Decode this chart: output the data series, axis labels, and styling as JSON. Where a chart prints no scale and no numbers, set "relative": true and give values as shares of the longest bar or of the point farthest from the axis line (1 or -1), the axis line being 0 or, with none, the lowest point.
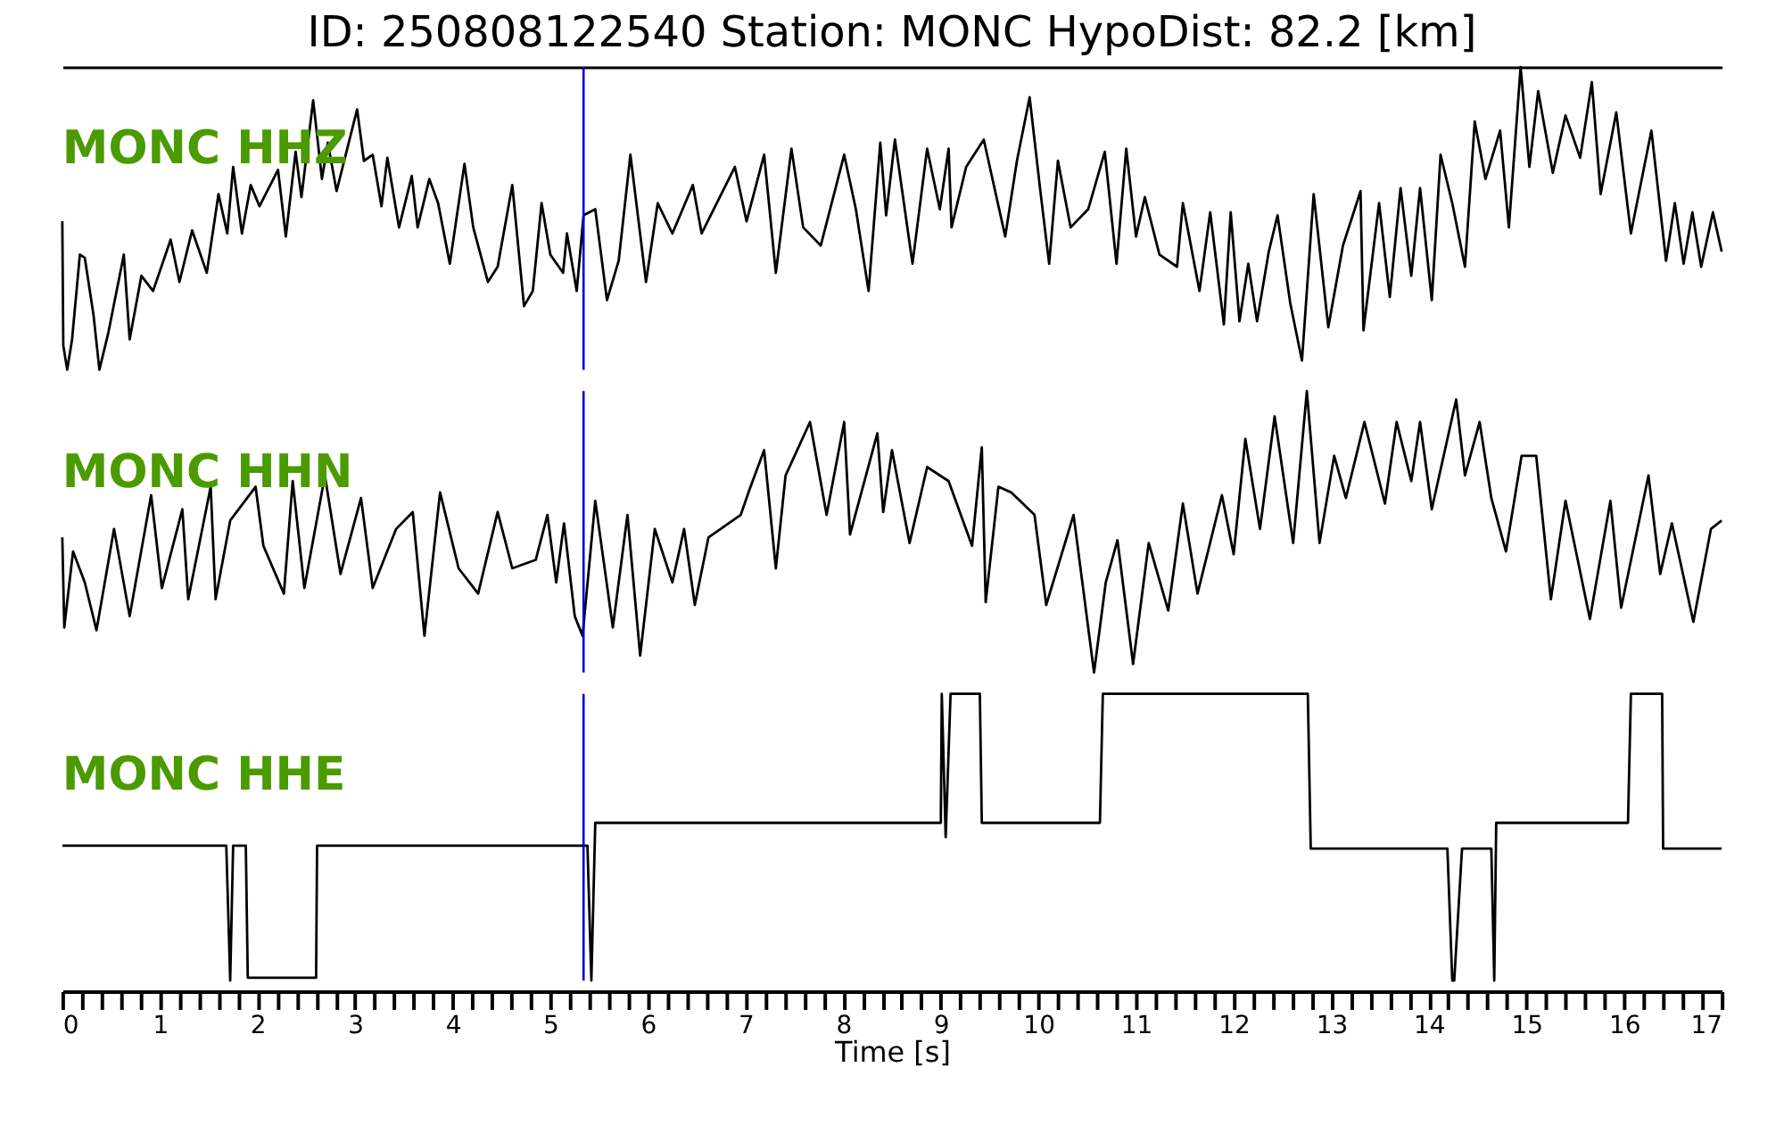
{
  "chart_data": [
    {
      "type": "line",
      "title": "ID: 250808122540   Station: MONC   HypoDist:    82.2 [km]",
      "relative": true,
      "xlim": [
        0,
        17
      ],
      "tick_labels": false,
      "ref_lines": [
        {
          "axis": "x",
          "value": 5.34,
          "color": "#0000cc"
        }
      ],
      "series": [
        {
          "name": "MONC HHZ",
          "color": "#000000",
          "x": [
            0,
            0.01,
            0.05,
            0.1,
            0.18,
            0.23,
            0.32,
            0.38,
            0.47,
            0.63,
            0.69,
            0.81,
            0.93,
            1.11,
            1.2,
            1.33,
            1.48,
            1.6,
            1.69,
            1.75,
            1.84,
            1.93,
            2.02,
            2.21,
            2.29,
            2.39,
            2.45,
            2.57,
            2.66,
            2.72,
            2.81,
            3.02,
            3.09,
            3.18,
            3.27,
            3.33,
            3.45,
            3.58,
            3.64,
            3.76,
            3.85,
            3.97,
            4.12,
            4.21,
            4.36,
            4.46,
            4.61,
            4.73,
            4.82,
            4.91,
            5.0,
            5.13,
            5.17,
            5.27,
            5.34,
            5.46,
            5.58,
            5.7,
            5.82,
            5.98,
            6.1,
            6.25,
            6.46,
            6.55,
            6.89,
            7.01,
            7.19,
            7.31,
            7.47,
            7.59,
            7.77,
            8.01,
            8.13,
            8.26,
            8.38,
            8.44,
            8.53,
            8.71,
            8.86,
            8.99,
            9.08,
            9.11,
            9.26,
            9.44,
            9.66,
            9.78,
            9.91,
            10.02,
            10.11,
            10.2,
            10.33,
            10.51,
            10.68,
            10.8,
            10.9,
            11.0,
            11.09,
            11.24,
            11.42,
            11.48,
            11.65,
            11.76,
            11.9,
            11.97,
            12.06,
            12.15,
            12.24,
            12.36,
            12.45,
            12.58,
            12.7,
            12.82,
            12.97,
            13.12,
            13.21,
            13.3,
            13.33,
            13.49,
            13.6,
            13.71,
            13.82,
            13.91,
            14.03,
            14.12,
            14.24,
            14.37,
            14.47,
            14.58,
            14.73,
            14.82,
            14.94,
            15.03,
            15.12,
            15.27,
            15.4,
            15.55,
            15.67,
            15.76,
            15.92,
            16.07,
            16.28,
            16.43,
            16.52,
            16.61,
            16.7,
            16.79,
            16.91,
            17.0
          ],
          "values": [
            0.49,
            0.08,
            0,
            0.1,
            0.38,
            0.37,
            0.18,
            0.0,
            0.12,
            0.38,
            0.1,
            0.31,
            0.26,
            0.43,
            0.29,
            0.46,
            0.32,
            0.58,
            0.45,
            0.67,
            0.45,
            0.61,
            0.54,
            0.66,
            0.44,
            0.72,
            0.57,
            0.89,
            0.63,
            0.75,
            0.59,
            0.86,
            0.69,
            0.71,
            0.54,
            0.7,
            0.47,
            0.64,
            0.47,
            0.63,
            0.55,
            0.35,
            0.68,
            0.47,
            0.29,
            0.34,
            0.61,
            0.21,
            0.26,
            0.55,
            0.38,
            0.32,
            0.45,
            0.26,
            0.51,
            0.53,
            0.23,
            0.36,
            0.71,
            0.29,
            0.55,
            0.45,
            0.61,
            0.45,
            0.67,
            0.49,
            0.71,
            0.32,
            0.73,
            0.47,
            0.41,
            0.71,
            0.53,
            0.26,
            0.75,
            0.51,
            0.76,
            0.35,
            0.73,
            0.53,
            0.73,
            0.47,
            0.67,
            0.76,
            0.44,
            0.69,
            0.9,
            0.59,
            0.35,
            0.69,
            0.47,
            0.53,
            0.72,
            0.35,
            0.73,
            0.44,
            0.57,
            0.38,
            0.34,
            0.55,
            0.26,
            0.52,
            0.15,
            0.52,
            0.16,
            0.35,
            0.16,
            0.39,
            0.51,
            0.22,
            0.03,
            0.58,
            0.14,
            0.41,
            0.5,
            0.59,
            0.13,
            0.55,
            0.24,
            0.6,
            0.31,
            0.6,
            0.23,
            0.71,
            0.55,
            0.34,
            0.82,
            0.63,
            0.79,
            0.47,
            1.0,
            0.67,
            0.92,
            0.65,
            0.84,
            0.7,
            0.95,
            0.58,
            0.85,
            0.45,
            0.79,
            0.36,
            0.55,
            0.35,
            0.52,
            0.34,
            0.52,
            0.39
          ]
        }
      ]
    },
    {
      "type": "line",
      "relative": true,
      "xlim": [
        0,
        17
      ],
      "tick_labels": false,
      "ref_lines": [
        {
          "axis": "x",
          "value": 5.34,
          "color": "#0000cc"
        }
      ],
      "series": [
        {
          "name": "MONC HHN",
          "color": "#000000",
          "x": [
            0,
            0.02,
            0.11,
            0.23,
            0.35,
            0.53,
            0.69,
            0.91,
            1.02,
            1.23,
            1.29,
            1.52,
            1.57,
            1.72,
            1.98,
            2.06,
            2.27,
            2.36,
            2.48,
            2.69,
            2.85,
            3.06,
            3.18,
            3.42,
            3.59,
            3.71,
            3.87,
            4.06,
            4.26,
            4.46,
            4.61,
            4.85,
            4.97,
            5.06,
            5.14,
            5.25,
            5.33,
            5.46,
            5.64,
            5.79,
            5.92,
            6.07,
            6.25,
            6.37,
            6.48,
            6.62,
            6.95,
            7.04,
            7.19,
            7.31,
            7.41,
            7.66,
            7.83,
            8.01,
            8.07,
            8.35,
            8.41,
            8.5,
            8.68,
            8.86,
            9.08,
            9.32,
            9.42,
            9.46,
            9.59,
            9.72,
            9.96,
            10.08,
            10.36,
            10.57,
            10.69,
            10.81,
            10.97,
            11.13,
            11.33,
            11.48,
            11.63,
            11.88,
            12.0,
            12.12,
            12.27,
            12.42,
            12.61,
            12.75,
            12.88,
            13.03,
            13.15,
            13.34,
            13.55,
            13.67,
            13.82,
            13.91,
            14.03,
            14.28,
            14.37,
            14.52,
            14.64,
            14.79,
            14.95,
            15.1,
            15.25,
            15.4,
            15.65,
            15.86,
            15.97,
            16.25,
            16.37,
            16.49,
            16.71,
            16.89,
            17.0
          ],
          "values": [
            0.48,
            0.16,
            0.43,
            0.32,
            0.15,
            0.51,
            0.2,
            0.63,
            0.3,
            0.58,
            0.26,
            0.66,
            0.26,
            0.54,
            0.66,
            0.45,
            0.28,
            0.68,
            0.3,
            0.7,
            0.35,
            0.62,
            0.3,
            0.51,
            0.57,
            0.13,
            0.64,
            0.37,
            0.28,
            0.57,
            0.37,
            0.4,
            0.56,
            0.32,
            0.53,
            0.2,
            0.13,
            0.61,
            0.16,
            0.56,
            0.06,
            0.51,
            0.32,
            0.51,
            0.24,
            0.48,
            0.56,
            0.65,
            0.79,
            0.37,
            0.7,
            0.89,
            0.56,
            0.89,
            0.49,
            0.85,
            0.57,
            0.79,
            0.46,
            0.73,
            0.68,
            0.45,
            0.8,
            0.25,
            0.66,
            0.64,
            0.56,
            0.24,
            0.56,
            0.0,
            0.32,
            0.47,
            0.03,
            0.46,
            0.22,
            0.6,
            0.28,
            0.63,
            0.42,
            0.83,
            0.51,
            0.91,
            0.46,
            1.0,
            0.46,
            0.77,
            0.62,
            0.89,
            0.6,
            0.89,
            0.68,
            0.89,
            0.58,
            0.97,
            0.7,
            0.89,
            0.62,
            0.43,
            0.77,
            0.77,
            0.26,
            0.61,
            0.19,
            0.61,
            0.23,
            0.7,
            0.35,
            0.53,
            0.18,
            0.51,
            0.54
          ]
        }
      ]
    },
    {
      "type": "line",
      "relative": true,
      "xlabel": "Time [s]",
      "xlim": [
        0,
        17
      ],
      "tick_labels": "x",
      "xticks": [
        0,
        {
          "value": 0.2,
          "label": null
        },
        {
          "value": 0.4,
          "label": null
        },
        {
          "value": 0.6,
          "label": null
        },
        {
          "value": 0.8,
          "label": null
        },
        1,
        {
          "value": 1.2,
          "label": null
        },
        {
          "value": 1.4,
          "label": null
        },
        {
          "value": 1.6,
          "label": null
        },
        {
          "value": 1.8,
          "label": null
        },
        2,
        {
          "value": 2.2,
          "label": null
        },
        {
          "value": 2.4,
          "label": null
        },
        {
          "value": 2.6,
          "label": null
        },
        {
          "value": 2.8,
          "label": null
        },
        3,
        {
          "value": 3.2,
          "label": null
        },
        {
          "value": 3.4,
          "label": null
        },
        {
          "value": 3.6,
          "label": null
        },
        {
          "value": 3.8,
          "label": null
        },
        4,
        {
          "value": 4.2,
          "label": null
        },
        {
          "value": 4.4,
          "label": null
        },
        {
          "value": 4.6,
          "label": null
        },
        {
          "value": 4.8,
          "label": null
        },
        5,
        {
          "value": 5.2,
          "label": null
        },
        {
          "value": 5.4,
          "label": null
        },
        {
          "value": 5.6,
          "label": null
        },
        {
          "value": 5.8,
          "label": null
        },
        6,
        {
          "value": 6.2,
          "label": null
        },
        {
          "value": 6.4,
          "label": null
        },
        {
          "value": 6.6,
          "label": null
        },
        {
          "value": 6.8,
          "label": null
        },
        7,
        {
          "value": 7.2,
          "label": null
        },
        {
          "value": 7.4,
          "label": null
        },
        {
          "value": 7.6,
          "label": null
        },
        {
          "value": 7.8,
          "label": null
        },
        8,
        {
          "value": 8.2,
          "label": null
        },
        {
          "value": 8.4,
          "label": null
        },
        {
          "value": 8.6,
          "label": null
        },
        {
          "value": 8.8,
          "label": null
        },
        9,
        {
          "value": 9.2,
          "label": null
        },
        {
          "value": 9.4,
          "label": null
        },
        {
          "value": 9.6,
          "label": null
        },
        {
          "value": 9.8,
          "label": null
        },
        10,
        {
          "value": 10.2,
          "label": null
        },
        {
          "value": 10.4,
          "label": null
        },
        {
          "value": 10.6,
          "label": null
        },
        {
          "value": 10.8,
          "label": null
        },
        11,
        {
          "value": 11.2,
          "label": null
        },
        {
          "value": 11.4,
          "label": null
        },
        {
          "value": 11.6,
          "label": null
        },
        {
          "value": 11.8,
          "label": null
        },
        12,
        {
          "value": 12.2,
          "label": null
        },
        {
          "value": 12.4,
          "label": null
        },
        {
          "value": 12.6,
          "label": null
        },
        {
          "value": 12.8,
          "label": null
        },
        13,
        {
          "value": 13.2,
          "label": null
        },
        {
          "value": 13.4,
          "label": null
        },
        {
          "value": 13.6,
          "label": null
        },
        {
          "value": 13.8,
          "label": null
        },
        14,
        {
          "value": 14.2,
          "label": null
        },
        {
          "value": 14.4,
          "label": null
        },
        {
          "value": 14.6,
          "label": null
        },
        {
          "value": 14.8,
          "label": null
        },
        15,
        {
          "value": 15.2,
          "label": null
        },
        {
          "value": 15.4,
          "label": null
        },
        {
          "value": 15.6,
          "label": null
        },
        {
          "value": 15.8,
          "label": null
        },
        16,
        {
          "value": 16.2,
          "label": null
        },
        {
          "value": 16.4,
          "label": null
        },
        {
          "value": 16.6,
          "label": null
        },
        {
          "value": 16.8,
          "label": null
        },
        17
      ],
      "ref_lines": [
        {
          "axis": "x",
          "value": 5.34,
          "color": "#0000cc"
        }
      ],
      "series": [
        {
          "name": "MONC HHE",
          "color": "#000000",
          "x": [
            0,
            1.68,
            1.72,
            1.75,
            1.88,
            1.9,
            2.6,
            2.61,
            5.38,
            5.42,
            5.46,
            9.0,
            9.01,
            9.05,
            9.1,
            9.4,
            9.42,
            10.63,
            10.66,
            12.76,
            12.79,
            14.19,
            14.24,
            14.26,
            14.34,
            14.64,
            14.67,
            14.69,
            16.04,
            16.07,
            16.39,
            16.4,
            17
          ],
          "values": [
            0.47,
            0.47,
            0.0,
            0.47,
            0.47,
            0.01,
            0.01,
            0.47,
            0.47,
            0.0,
            0.55,
            0.55,
            1.0,
            0.5,
            1.0,
            1.0,
            0.55,
            0.55,
            1.0,
            1.0,
            0.46,
            0.46,
            0.0,
            0.0,
            0.46,
            0.46,
            0.0,
            0.55,
            0.55,
            1.0,
            1.0,
            0.46,
            0.46
          ]
        }
      ]
    }
  ]
}
